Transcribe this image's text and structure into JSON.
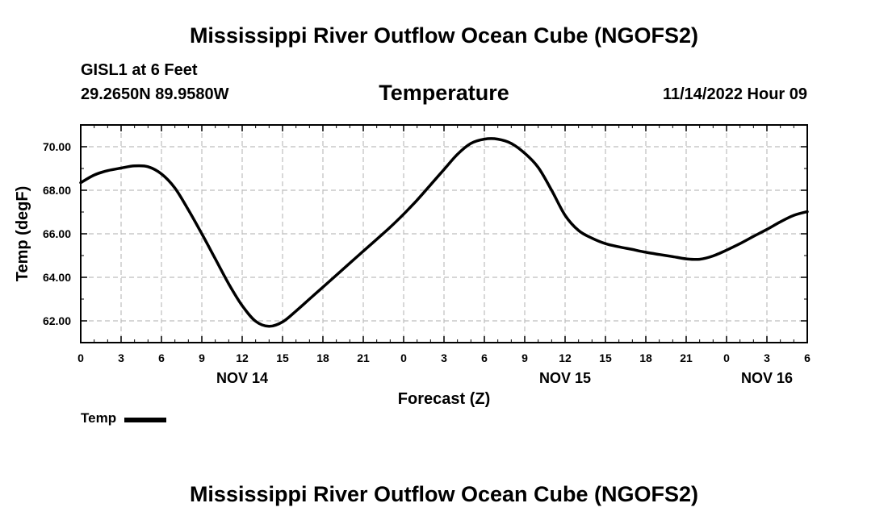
{
  "header": {
    "main_title": "Mississippi River Outflow Ocean Cube (NGOFS2)",
    "station": "GISL1 at 6 Feet",
    "coords": "29.2650N  89.9580W",
    "timestamp": "11/14/2022 Hour 09"
  },
  "footer": {
    "title": "Mississippi River Outflow Ocean Cube (NGOFS2)"
  },
  "legend": {
    "label": "Temp"
  },
  "colors": {
    "line": "#000000",
    "grid": "#bdbdbd",
    "axis": "#000000"
  },
  "chart_data": {
    "type": "line",
    "title": "Temperature",
    "xlabel": "Forecast (Z)",
    "ylabel": "Temp (degF)",
    "x_unit": "hours from NOV 14 00Z",
    "xlim": [
      0,
      54
    ],
    "ylim": [
      61.0,
      71.0
    ],
    "y_ticks": [
      62.0,
      64.0,
      66.0,
      68.0,
      70.0
    ],
    "y_tick_labels": [
      "62.00",
      "64.00",
      "66.00",
      "68.00",
      "70.00"
    ],
    "x_ticks": [
      0,
      3,
      6,
      9,
      12,
      15,
      18,
      21,
      24,
      27,
      30,
      33,
      36,
      39,
      42,
      45,
      48,
      51,
      54
    ],
    "x_tick_labels": [
      "0",
      "3",
      "6",
      "9",
      "12",
      "15",
      "18",
      "21",
      "0",
      "3",
      "6",
      "9",
      "12",
      "15",
      "18",
      "21",
      "0",
      "3",
      "6"
    ],
    "date_labels": [
      {
        "x": 12,
        "label": "NOV 14"
      },
      {
        "x": 36,
        "label": "NOV 15"
      },
      {
        "x": 51,
        "label": "NOV 16"
      }
    ],
    "grid": true,
    "legend_position": "bottom-left",
    "series": [
      {
        "name": "Temp",
        "x": [
          0,
          1,
          2,
          3,
          4,
          5,
          6,
          7,
          8,
          9,
          10,
          11,
          12,
          13,
          14,
          15,
          16,
          17,
          18,
          19,
          20,
          21,
          22,
          23,
          24,
          25,
          26,
          27,
          28,
          29,
          30,
          31,
          32,
          33,
          34,
          35,
          36,
          37,
          38,
          39,
          40,
          41,
          42,
          43,
          44,
          45,
          46,
          47,
          48,
          49,
          50,
          51,
          52,
          53,
          54
        ],
        "values": [
          68.35,
          68.7,
          68.9,
          69.02,
          69.12,
          69.08,
          68.75,
          68.1,
          67.1,
          66.0,
          64.85,
          63.7,
          62.7,
          61.98,
          61.75,
          61.95,
          62.45,
          63.0,
          63.55,
          64.1,
          64.65,
          65.2,
          65.75,
          66.3,
          66.9,
          67.55,
          68.25,
          68.95,
          69.65,
          70.15,
          70.35,
          70.35,
          70.15,
          69.7,
          69.05,
          68.0,
          66.85,
          66.15,
          65.8,
          65.55,
          65.4,
          65.28,
          65.15,
          65.05,
          64.95,
          64.85,
          64.83,
          64.98,
          65.25,
          65.55,
          65.88,
          66.2,
          66.55,
          66.85,
          67.02
        ]
      }
    ]
  }
}
